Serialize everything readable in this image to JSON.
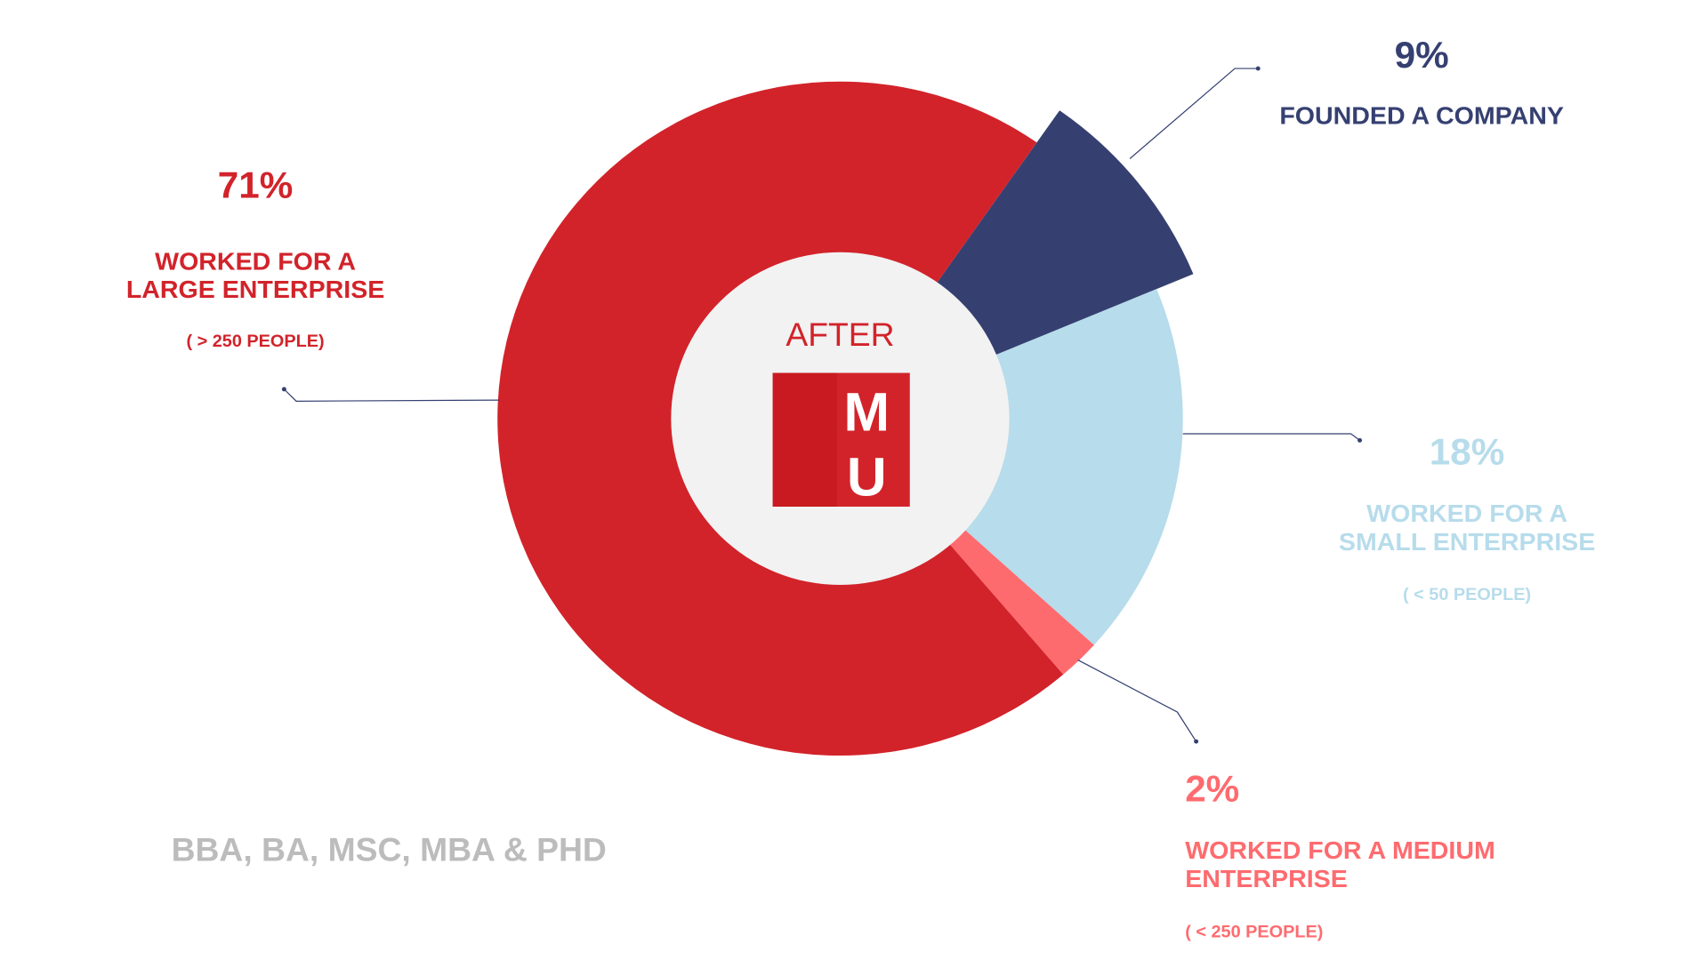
{
  "chart_data": {
    "type": "pie",
    "categories": [
      "FOUNDED A COMPANY",
      "WORKED FOR A\nSMALL ENTERPRISE",
      "WORKED FOR A MEDIUM\nENTERPRISE",
      "WORKED FOR A\nLARGE ENTERPRISE"
    ],
    "values": [
      9,
      18,
      2,
      71
    ],
    "value_labels": [
      "9%",
      "18%",
      "2%",
      "71%"
    ],
    "notes": [
      null,
      "( < 50 PEOPLE)",
      "( < 250 PEOPLE)",
      "( > 250 PEOPLE)"
    ],
    "colors": [
      "#354071",
      "#b7dceb",
      "#fe6b6f",
      "#d2232a"
    ],
    "center_label": "AFTER",
    "logo": [
      "M",
      "U"
    ],
    "footer": "BBA, BA, MSC, MBA & PHD"
  }
}
